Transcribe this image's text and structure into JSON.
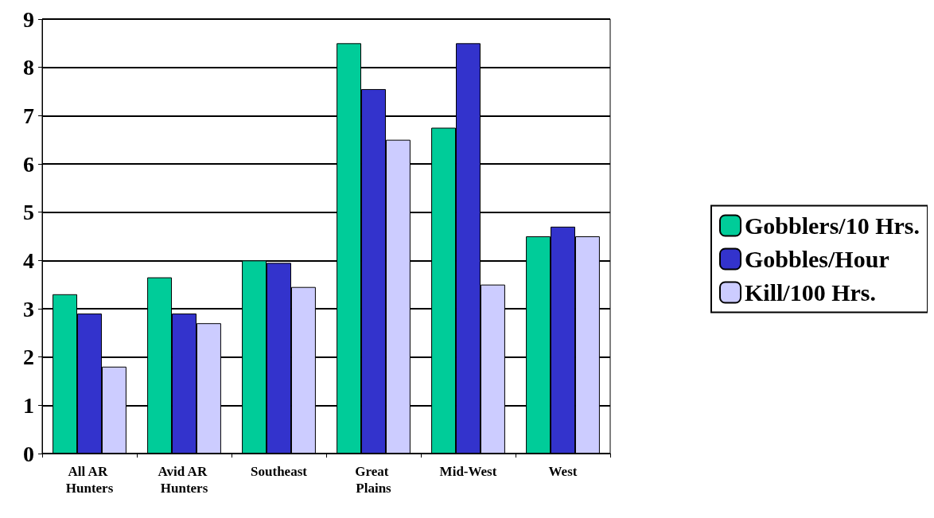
{
  "chart_data": {
    "type": "bar",
    "categories": [
      "All AR Hunters",
      "Avid AR Hunters",
      "Southeast",
      "Great Plains",
      "Mid-West",
      "West"
    ],
    "series": [
      {
        "name": "Gobblers/10 Hrs.",
        "color": "#00cc99",
        "values": [
          3.3,
          3.65,
          4.0,
          8.5,
          6.75,
          4.5
        ]
      },
      {
        "name": "Gobbles/Hour",
        "color": "#3333cc",
        "values": [
          2.9,
          2.9,
          3.95,
          7.55,
          8.5,
          4.7
        ]
      },
      {
        "name": "Kill/100 Hrs.",
        "color": "#ccccff",
        "values": [
          1.8,
          2.7,
          3.45,
          6.5,
          3.5,
          4.5
        ]
      }
    ],
    "ylim": [
      0,
      9
    ],
    "yticks": [
      0,
      1,
      2,
      3,
      4,
      5,
      6,
      7,
      8,
      9
    ],
    "grid": "y",
    "legend": "right"
  }
}
